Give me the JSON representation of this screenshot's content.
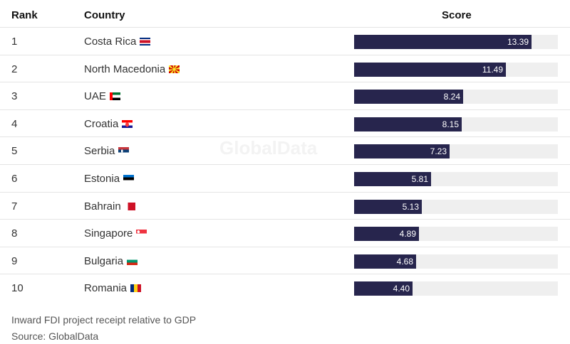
{
  "chart_data": {
    "type": "bar",
    "orientation": "horizontal",
    "columns": [
      "Rank",
      "Country",
      "Score"
    ],
    "rows": [
      {
        "rank": "1",
        "country": "Costa Rica",
        "flag": "costa-rica-flag-icon",
        "value": 13.39,
        "label": "13.39"
      },
      {
        "rank": "2",
        "country": "North Macedonia",
        "flag": "north-macedonia-flag-icon",
        "value": 11.49,
        "label": "11.49"
      },
      {
        "rank": "3",
        "country": "UAE",
        "flag": "uae-flag-icon",
        "value": 8.24,
        "label": "8.24"
      },
      {
        "rank": "4",
        "country": "Croatia",
        "flag": "croatia-flag-icon",
        "value": 8.15,
        "label": "8.15"
      },
      {
        "rank": "5",
        "country": "Serbia",
        "flag": "serbia-flag-icon",
        "value": 7.23,
        "label": "7.23"
      },
      {
        "rank": "6",
        "country": "Estonia",
        "flag": "estonia-flag-icon",
        "value": 5.81,
        "label": "5.81"
      },
      {
        "rank": "7",
        "country": "Bahrain",
        "flag": "bahrain-flag-icon",
        "value": 5.13,
        "label": "5.13"
      },
      {
        "rank": "8",
        "country": "Singapore",
        "flag": "singapore-flag-icon",
        "value": 4.89,
        "label": "4.89"
      },
      {
        "rank": "9",
        "country": "Bulgaria",
        "flag": "bulgaria-flag-icon",
        "value": 4.68,
        "label": "4.68"
      },
      {
        "rank": "10",
        "country": "Romania",
        "flag": "romania-flag-icon",
        "value": 4.4,
        "label": "4.40"
      }
    ],
    "xlim": [
      0,
      15.4
    ],
    "colors": {
      "bar": "#27254d",
      "track": "#efefef"
    }
  },
  "footer": {
    "note": "Inward FDI project receipt relative to GDP",
    "source": "Source: GlobalData"
  },
  "watermark": "GlobalData"
}
